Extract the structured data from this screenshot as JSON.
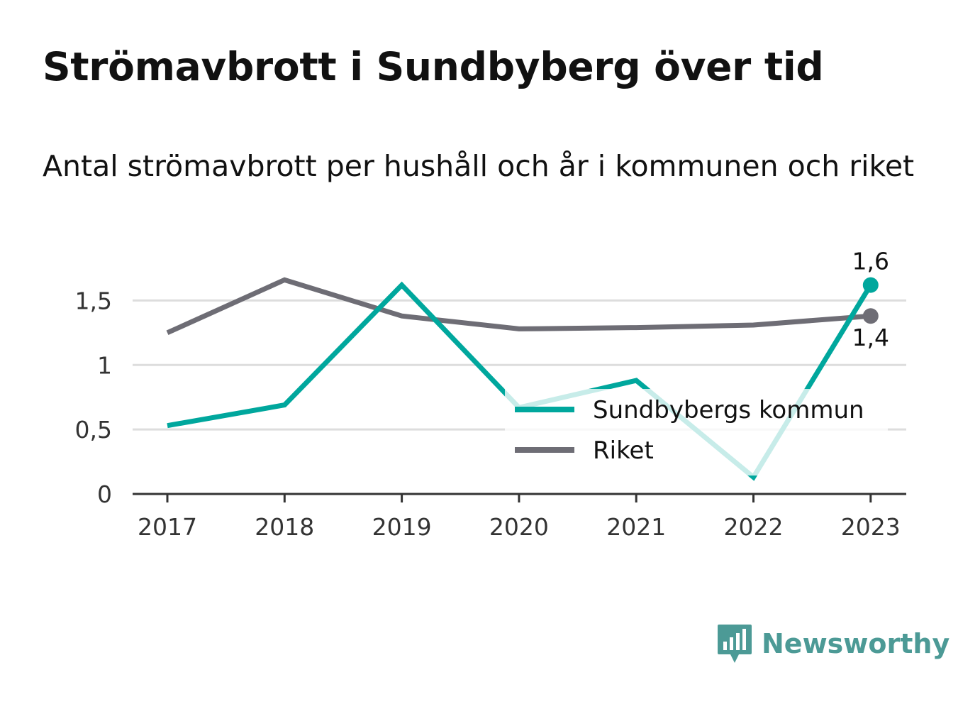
{
  "title": "Strömavbrott i Sundbyberg över tid",
  "subtitle": "Antal strömavbrott per hushåll och år i kommunen och riket",
  "brand": {
    "name": "Newsworthy",
    "icon": "newsworthy-logo-icon"
  },
  "colors": {
    "kommun": "#00a79d",
    "riket": "#6e6d75",
    "grid": "#dddddd",
    "axis": "#333333",
    "brand": "#4c9a96"
  },
  "chart_data": {
    "type": "line",
    "categories": [
      "2017",
      "2018",
      "2019",
      "2020",
      "2021",
      "2022",
      "2023"
    ],
    "series": [
      {
        "name": "Sundbybergs kommun",
        "values": [
          0.53,
          0.69,
          1.62,
          0.67,
          0.88,
          0.13,
          1.62
        ]
      },
      {
        "name": "Riket",
        "values": [
          1.25,
          1.66,
          1.38,
          1.28,
          1.29,
          1.31,
          1.38
        ]
      }
    ],
    "ylim": [
      0,
      1.75
    ],
    "yticks": [
      0,
      0.5,
      1,
      1.5
    ],
    "ytick_labels": [
      "0",
      "0,5",
      "1",
      "1,5"
    ],
    "end_labels": [
      "1,6",
      "1,4"
    ],
    "xlabel": "",
    "ylabel": "",
    "grid": true,
    "legend": "bottom-right, inside plot"
  }
}
